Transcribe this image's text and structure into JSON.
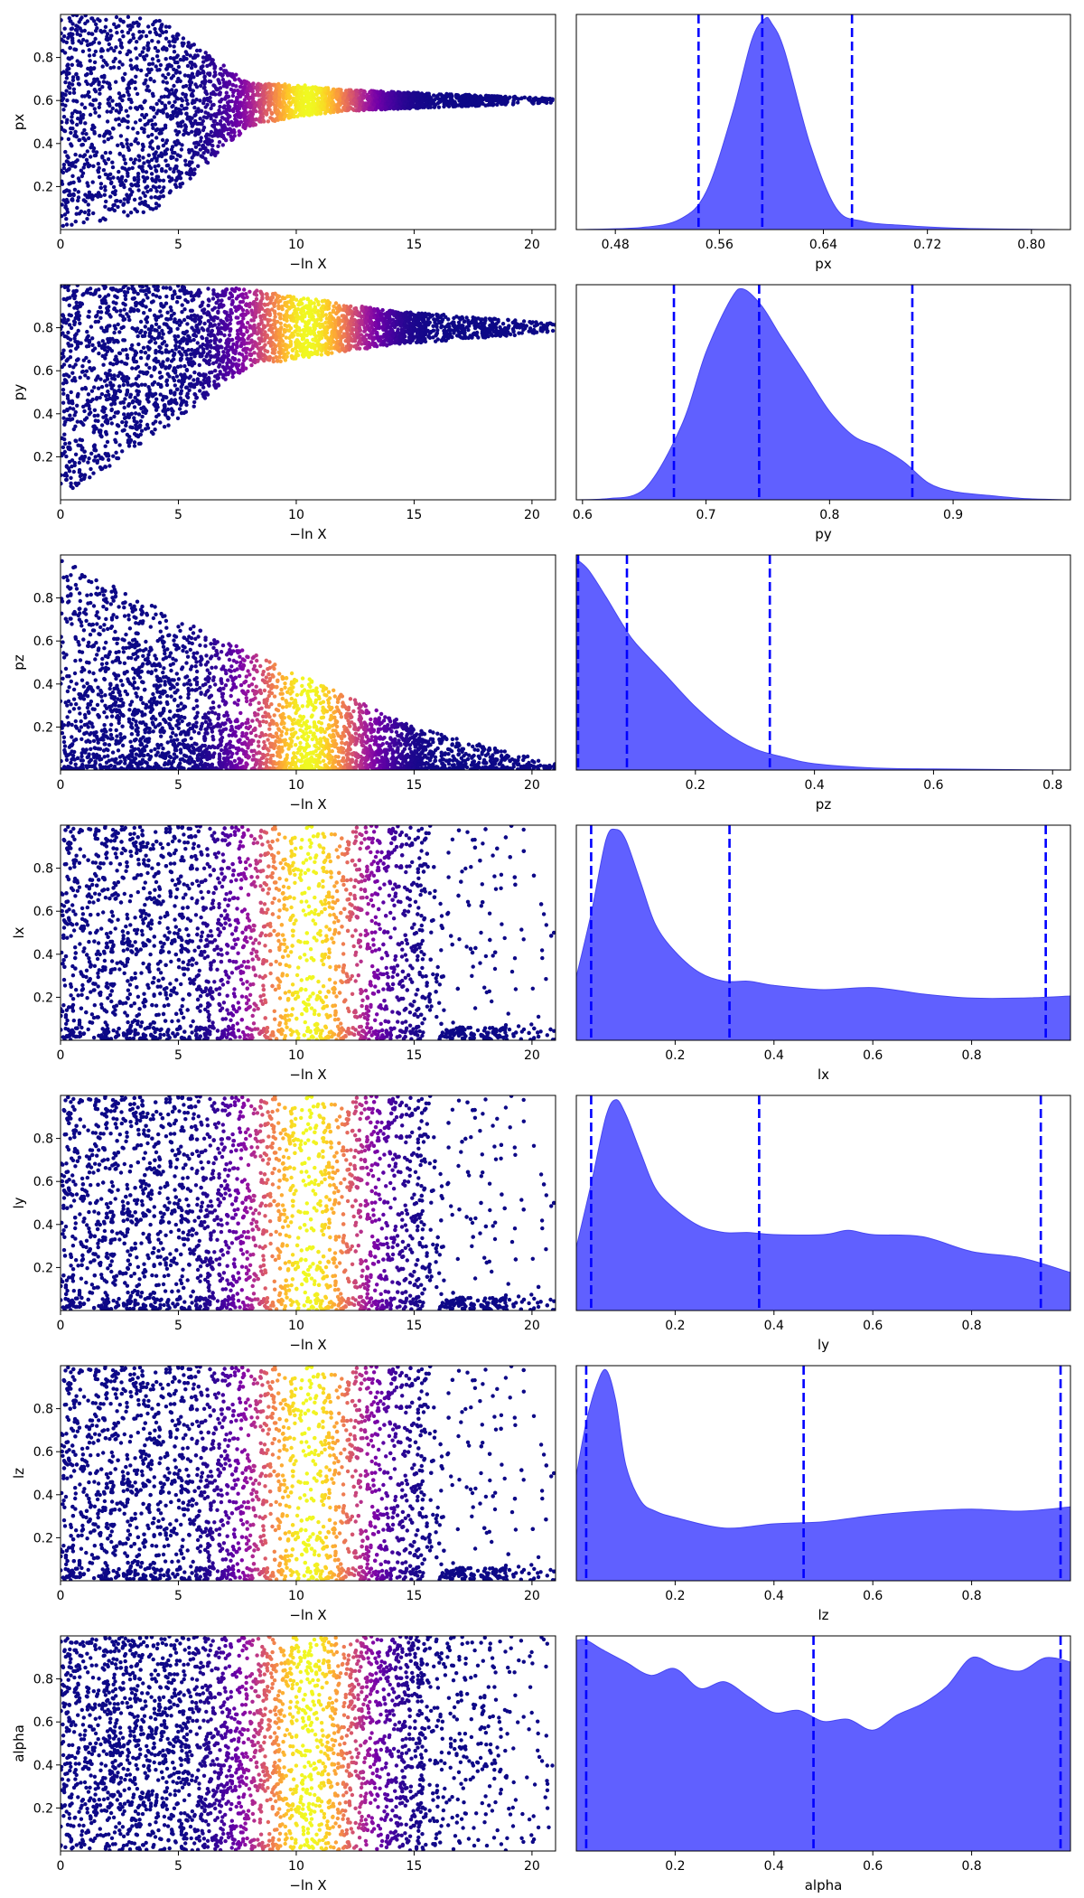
{
  "figure": {
    "background": "#ffffff"
  },
  "colors": {
    "kde_fill": "#6060ff",
    "kde_edge": "#4646f0",
    "quantile_line": "#0000ff",
    "scatter_colormap": "plasma",
    "scatter_colormap_stops": [
      "#0d0887",
      "#46039f",
      "#7201a8",
      "#9c179e",
      "#bd3786",
      "#d8576b",
      "#ed7953",
      "#fb9f3a",
      "#fdca26",
      "#f0f921"
    ]
  },
  "chart_data": [
    {
      "type": "scatter",
      "name": "trace-px",
      "xlabel": "−ln X",
      "ylabel": "px",
      "xlim": [
        0,
        21
      ],
      "ylim": [
        0.0,
        1.0
      ],
      "xticks": [
        0,
        5,
        10,
        15,
        20
      ],
      "yticks": [
        0.2,
        0.4,
        0.6,
        0.8
      ],
      "color_scale": {
        "mode": "peak",
        "center": 10.5,
        "width": 2.4
      },
      "envelope": {
        "center": [
          [
            0,
            0.5
          ],
          [
            10,
            0.6
          ],
          [
            21,
            0.6
          ]
        ],
        "halfwidth": [
          [
            0,
            0.5
          ],
          [
            4,
            0.45
          ],
          [
            8,
            0.1
          ],
          [
            12,
            0.05
          ],
          [
            21,
            0.01
          ]
        ]
      },
      "point_count": 3200
    },
    {
      "type": "area",
      "name": "posterior-px",
      "xlabel": "px",
      "xlim": [
        0.45,
        0.83
      ],
      "xticks": [
        0.48,
        0.56,
        0.64,
        0.72,
        0.8
      ],
      "tick_decimals": 2,
      "x": [
        0.45,
        0.5,
        0.53,
        0.55,
        0.57,
        0.585,
        0.595,
        0.6,
        0.61,
        0.63,
        0.65,
        0.67,
        0.7,
        0.75,
        0.83
      ],
      "y": [
        0.0,
        0.01,
        0.05,
        0.18,
        0.55,
        0.9,
        1.0,
        0.98,
        0.85,
        0.4,
        0.1,
        0.04,
        0.02,
        0.005,
        0.0
      ],
      "quantiles": [
        0.544,
        0.593,
        0.662
      ]
    },
    {
      "type": "scatter",
      "name": "trace-py",
      "xlabel": "−ln X",
      "ylabel": "py",
      "xlim": [
        0,
        21
      ],
      "ylim": [
        0.0,
        1.0
      ],
      "xticks": [
        0,
        5,
        10,
        15,
        20
      ],
      "yticks": [
        0.2,
        0.4,
        0.6,
        0.8
      ],
      "color_scale": {
        "mode": "peak",
        "center": 10.5,
        "width": 2.4
      },
      "envelope": {
        "center": [
          [
            0,
            0.5
          ],
          [
            8,
            0.8
          ],
          [
            21,
            0.8
          ]
        ],
        "halfwidth": [
          [
            0,
            0.5
          ],
          [
            4,
            0.35
          ],
          [
            8,
            0.18
          ],
          [
            14,
            0.08
          ],
          [
            21,
            0.02
          ]
        ]
      },
      "point_count": 3200
    },
    {
      "type": "area",
      "name": "posterior-py",
      "xlabel": "py",
      "xlim": [
        0.595,
        0.995
      ],
      "xticks": [
        0.6,
        0.7,
        0.8,
        0.9
      ],
      "tick_decimals": 1,
      "x": [
        0.595,
        0.62,
        0.65,
        0.68,
        0.7,
        0.72,
        0.73,
        0.745,
        0.76,
        0.78,
        0.8,
        0.82,
        0.84,
        0.86,
        0.88,
        0.9,
        0.93,
        0.96,
        0.995
      ],
      "y": [
        0.0,
        0.005,
        0.05,
        0.35,
        0.7,
        0.95,
        1.0,
        0.92,
        0.78,
        0.6,
        0.42,
        0.3,
        0.25,
        0.18,
        0.08,
        0.04,
        0.02,
        0.005,
        0.0
      ],
      "quantiles": [
        0.674,
        0.743,
        0.867
      ]
    },
    {
      "type": "scatter",
      "name": "trace-pz",
      "xlabel": "−ln X",
      "ylabel": "pz",
      "xlim": [
        0,
        21
      ],
      "ylim": [
        0.0,
        1.0
      ],
      "xticks": [
        0,
        5,
        10,
        15,
        20
      ],
      "yticks": [
        0.2,
        0.4,
        0.6,
        0.8
      ],
      "color_scale": {
        "mode": "peak",
        "center": 10.5,
        "width": 2.4
      },
      "envelope": {
        "type": "decay",
        "upper": [
          [
            0,
            1.0
          ],
          [
            5,
            0.7
          ],
          [
            10,
            0.45
          ],
          [
            15,
            0.2
          ],
          [
            21,
            0.03
          ]
        ]
      },
      "point_count": 3200
    },
    {
      "type": "area",
      "name": "posterior-pz",
      "xlabel": "pz",
      "xlim": [
        0.0,
        0.83
      ],
      "xticks": [
        0.2,
        0.4,
        0.6,
        0.8
      ],
      "tick_decimals": 1,
      "x": [
        0.0,
        0.02,
        0.05,
        0.08,
        0.1,
        0.15,
        0.2,
        0.25,
        0.3,
        0.35,
        0.4,
        0.5,
        0.6,
        0.83
      ],
      "y": [
        1.0,
        0.95,
        0.82,
        0.68,
        0.6,
        0.45,
        0.3,
        0.18,
        0.1,
        0.06,
        0.03,
        0.01,
        0.005,
        0.0
      ],
      "quantiles": [
        0.003,
        0.085,
        0.325
      ]
    },
    {
      "type": "scatter",
      "name": "trace-lx",
      "xlabel": "−ln X",
      "ylabel": "lx",
      "xlim": [
        0,
        21
      ],
      "ylim": [
        0.0,
        1.0
      ],
      "xticks": [
        0,
        5,
        10,
        15,
        20
      ],
      "yticks": [
        0.2,
        0.4,
        0.6,
        0.8
      ],
      "color_scale": {
        "mode": "peak",
        "center": 10.5,
        "width": 2.4
      },
      "envelope": {
        "type": "uniform",
        "x_tail": 16,
        "low_band": 0.06
      },
      "point_count": 3200
    },
    {
      "type": "area",
      "name": "posterior-lx",
      "xlabel": "lx",
      "xlim": [
        0.0,
        1.0
      ],
      "xticks": [
        0.2,
        0.4,
        0.6,
        0.8
      ],
      "tick_decimals": 1,
      "x": [
        0.0,
        0.03,
        0.06,
        0.08,
        0.1,
        0.13,
        0.16,
        0.2,
        0.25,
        0.3,
        0.35,
        0.4,
        0.5,
        0.6,
        0.7,
        0.8,
        0.9,
        1.0
      ],
      "y": [
        0.3,
        0.6,
        0.95,
        1.0,
        0.95,
        0.75,
        0.55,
        0.42,
        0.32,
        0.28,
        0.28,
        0.26,
        0.24,
        0.25,
        0.22,
        0.2,
        0.2,
        0.21
      ],
      "quantiles": [
        0.03,
        0.31,
        0.95
      ]
    },
    {
      "type": "scatter",
      "name": "trace-ly",
      "xlabel": "−ln X",
      "ylabel": "ly",
      "xlim": [
        0,
        21
      ],
      "ylim": [
        0.0,
        1.0
      ],
      "xticks": [
        0,
        5,
        10,
        15,
        20
      ],
      "yticks": [
        0.2,
        0.4,
        0.6,
        0.8
      ],
      "color_scale": {
        "mode": "peak",
        "center": 10.5,
        "width": 2.4
      },
      "envelope": {
        "type": "uniform",
        "x_tail": 16,
        "low_band": 0.06
      },
      "point_count": 3200
    },
    {
      "type": "area",
      "name": "posterior-ly",
      "xlabel": "ly",
      "xlim": [
        0.0,
        1.0
      ],
      "xticks": [
        0.2,
        0.4,
        0.6,
        0.8
      ],
      "tick_decimals": 1,
      "x": [
        0.0,
        0.03,
        0.06,
        0.08,
        0.1,
        0.13,
        0.16,
        0.2,
        0.25,
        0.3,
        0.35,
        0.4,
        0.5,
        0.55,
        0.6,
        0.7,
        0.8,
        0.9,
        1.0
      ],
      "y": [
        0.3,
        0.6,
        0.92,
        1.0,
        0.93,
        0.75,
        0.58,
        0.48,
        0.4,
        0.37,
        0.37,
        0.36,
        0.36,
        0.38,
        0.36,
        0.35,
        0.28,
        0.25,
        0.18
      ],
      "quantiles": [
        0.03,
        0.37,
        0.94
      ]
    },
    {
      "type": "scatter",
      "name": "trace-lz",
      "xlabel": "−ln X",
      "ylabel": "lz",
      "xlim": [
        0,
        21
      ],
      "ylim": [
        0.0,
        1.0
      ],
      "xticks": [
        0,
        5,
        10,
        15,
        20
      ],
      "yticks": [
        0.2,
        0.4,
        0.6,
        0.8
      ],
      "color_scale": {
        "mode": "peak",
        "center": 10.5,
        "width": 2.4
      },
      "envelope": {
        "type": "uniform",
        "x_tail": 16,
        "low_band": 0.06
      },
      "point_count": 3200
    },
    {
      "type": "area",
      "name": "posterior-lz",
      "xlabel": "lz",
      "xlim": [
        0.0,
        1.0
      ],
      "xticks": [
        0.2,
        0.4,
        0.6,
        0.8
      ],
      "tick_decimals": 1,
      "x": [
        0.0,
        0.02,
        0.04,
        0.06,
        0.08,
        0.1,
        0.13,
        0.16,
        0.2,
        0.3,
        0.4,
        0.5,
        0.6,
        0.7,
        0.8,
        0.9,
        1.0
      ],
      "y": [
        0.5,
        0.75,
        0.92,
        1.0,
        0.85,
        0.55,
        0.38,
        0.33,
        0.3,
        0.25,
        0.27,
        0.28,
        0.31,
        0.33,
        0.34,
        0.33,
        0.35
      ],
      "quantiles": [
        0.02,
        0.46,
        0.98
      ]
    },
    {
      "type": "scatter",
      "name": "trace-alpha",
      "xlabel": "−ln X",
      "ylabel": "alpha",
      "xlim": [
        0,
        21
      ],
      "ylim": [
        0.0,
        1.0
      ],
      "xticks": [
        0,
        5,
        10,
        15,
        20
      ],
      "yticks": [
        0.2,
        0.4,
        0.6,
        0.8
      ],
      "color_scale": {
        "mode": "peak",
        "center": 10.5,
        "width": 2.4
      },
      "envelope": {
        "type": "uniform",
        "x_tail": 16,
        "low_band": 0.0
      },
      "point_count": 3200
    },
    {
      "type": "area",
      "name": "posterior-alpha",
      "xlabel": "alpha",
      "xlim": [
        0.0,
        1.0
      ],
      "xticks": [
        0.2,
        0.4,
        0.6,
        0.8
      ],
      "tick_decimals": 1,
      "x": [
        0.0,
        0.02,
        0.05,
        0.1,
        0.15,
        0.2,
        0.25,
        0.3,
        0.35,
        0.4,
        0.45,
        0.5,
        0.55,
        0.6,
        0.65,
        0.7,
        0.75,
        0.8,
        0.85,
        0.9,
        0.95,
        1.0
      ],
      "y": [
        0.96,
        0.96,
        0.92,
        0.86,
        0.8,
        0.83,
        0.74,
        0.77,
        0.7,
        0.63,
        0.64,
        0.59,
        0.6,
        0.55,
        0.62,
        0.67,
        0.75,
        0.88,
        0.84,
        0.82,
        0.88,
        0.86
      ],
      "quantiles": [
        0.02,
        0.48,
        0.98
      ]
    }
  ]
}
